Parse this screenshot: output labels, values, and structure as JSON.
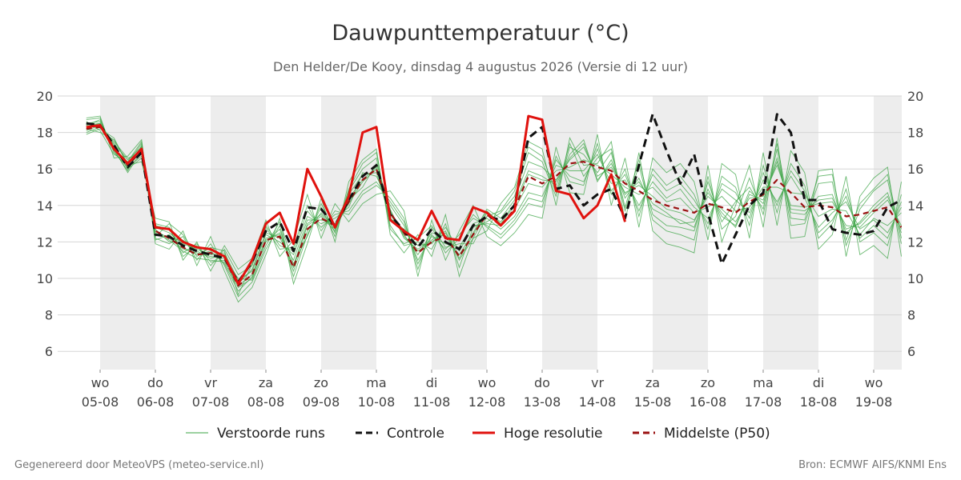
{
  "title": "Dauwpunttemperatuur (°C)",
  "subtitle": "Den Helder/De Kooy, dinsdag  4 augustus 2026 (Versie di 12 uur)",
  "footer_left": "Gegenereerd door MeteoVPS (meteo-service.nl)",
  "footer_right": "Bron: ECMWF AIFS/KNMI Ens",
  "chart_data": {
    "type": "line",
    "title": "Dauwpunttemperatuur (°C)",
    "ylim": [
      5,
      20
    ],
    "yticks": [
      6,
      8,
      10,
      12,
      14,
      16,
      18,
      20
    ],
    "x_unit": "days since 05-08 00:00 (interval of 6 hours)",
    "xlim": [
      -0.25,
      14.5
    ],
    "grid": true,
    "legend_position": "bottom",
    "xticks": [
      {
        "day": "wo",
        "date": "05-08"
      },
      {
        "day": "do",
        "date": "06-08"
      },
      {
        "day": "vr",
        "date": "07-08"
      },
      {
        "day": "za",
        "date": "08-08"
      },
      {
        "day": "zo",
        "date": "09-08"
      },
      {
        "day": "ma",
        "date": "10-08"
      },
      {
        "day": "di",
        "date": "11-08"
      },
      {
        "day": "wo",
        "date": "12-08"
      },
      {
        "day": "do",
        "date": "13-08"
      },
      {
        "day": "vr",
        "date": "14-08"
      },
      {
        "day": "za",
        "date": "15-08"
      },
      {
        "day": "zo",
        "date": "16-08"
      },
      {
        "day": "ma",
        "date": "17-08"
      },
      {
        "day": "di",
        "date": "18-08"
      },
      {
        "day": "wo",
        "date": "19-08"
      }
    ],
    "legend": [
      {
        "name": "Verstoorde runs",
        "color": "#3aa343",
        "style": "solid-thin"
      },
      {
        "name": "Controle",
        "color": "#111111",
        "style": "dashed"
      },
      {
        "name": "Hoge resolutie",
        "color": "#e0120e",
        "style": "solid-thick"
      },
      {
        "name": "Middelste (P50)",
        "color": "#9a1111",
        "style": "dashed"
      }
    ],
    "series": [
      {
        "name": "Hoge resolutie",
        "color": "#e0120e",
        "x": [
          -0.25,
          0,
          0.25,
          0.5,
          0.75,
          1,
          1.25,
          1.5,
          1.75,
          2,
          2.25,
          2.5,
          2.75,
          3,
          3.25,
          3.5,
          3.75,
          4,
          4.25,
          4.5,
          4.75,
          5,
          5.25,
          5.5,
          5.75,
          6,
          6.25,
          6.5,
          6.75,
          7,
          7.25,
          7.5,
          7.75,
          8,
          8.25,
          8.5,
          8.75,
          9,
          9.25,
          9.5
        ],
        "y": [
          18.3,
          18.4,
          17.1,
          16.3,
          17.1,
          12.8,
          12.7,
          12.0,
          11.7,
          11.6,
          11.2,
          9.7,
          11.0,
          13.0,
          13.6,
          11.9,
          16.0,
          14.5,
          12.8,
          14.5,
          18.0,
          18.3,
          13.2,
          12.6,
          12.1,
          13.7,
          12.2,
          12.1,
          13.9,
          13.6,
          12.9,
          13.7,
          18.9,
          18.7,
          14.8,
          14.6,
          13.3,
          14.0,
          15.7,
          13.1
        ]
      },
      {
        "name": "Controle",
        "color": "#111111",
        "x": [
          -0.25,
          0,
          0.25,
          0.5,
          0.75,
          1,
          1.25,
          1.5,
          1.75,
          2,
          2.25,
          2.5,
          2.75,
          3,
          3.25,
          3.5,
          3.75,
          4,
          4.25,
          4.5,
          4.75,
          5,
          5.25,
          5.5,
          5.75,
          6,
          6.25,
          6.5,
          6.75,
          7,
          7.25,
          7.5,
          7.75,
          8,
          8.25,
          8.5,
          8.75,
          9,
          9.25,
          9.5,
          9.75,
          10,
          10.25,
          10.5,
          10.75,
          11,
          11.25,
          11.5,
          11.75,
          12,
          12.25,
          12.5,
          12.75,
          13,
          13.25,
          13.5,
          13.75,
          14,
          14.25,
          14.5
        ],
        "y": [
          18.5,
          18.4,
          17.3,
          16.1,
          16.9,
          12.4,
          12.3,
          11.8,
          11.5,
          11.3,
          11.1,
          9.8,
          10.9,
          12.6,
          13.1,
          11.5,
          13.9,
          13.8,
          12.9,
          14.3,
          15.6,
          16.2,
          13.5,
          12.6,
          11.7,
          12.7,
          12.0,
          11.6,
          12.9,
          13.4,
          13.2,
          14.0,
          17.7,
          18.3,
          14.9,
          15.1,
          14.0,
          14.6,
          14.9,
          13.3,
          16.2,
          19.0,
          17.0,
          15.2,
          16.8,
          13.6,
          10.8,
          12.4,
          14.0,
          14.7,
          19.0,
          18.0,
          14.3,
          14.3,
          12.7,
          12.5,
          12.4,
          12.6,
          13.9,
          14.3
        ]
      },
      {
        "name": "Middelste (P50)",
        "color": "#9a1111",
        "x": [
          -0.25,
          0,
          0.25,
          0.5,
          0.75,
          1,
          1.25,
          1.5,
          1.75,
          2,
          2.25,
          2.5,
          2.75,
          3,
          3.25,
          3.5,
          3.75,
          4,
          4.25,
          4.5,
          4.75,
          5,
          5.25,
          5.5,
          5.75,
          6,
          6.25,
          6.5,
          6.75,
          7,
          7.25,
          7.5,
          7.75,
          8,
          8.25,
          8.5,
          8.75,
          9,
          9.25,
          9.5,
          9.75,
          10,
          10.25,
          10.5,
          10.75,
          11,
          11.25,
          11.5,
          11.75,
          12,
          12.25,
          12.5,
          12.75,
          13,
          13.25,
          13.5,
          13.75,
          14,
          14.25,
          14.5
        ],
        "y": [
          18.2,
          18.3,
          17.2,
          16.2,
          17.0,
          12.6,
          12.2,
          11.7,
          11.3,
          11.4,
          11.1,
          9.6,
          10.2,
          12.1,
          12.3,
          10.6,
          12.7,
          13.3,
          12.9,
          14.2,
          15.4,
          16.0,
          13.6,
          12.5,
          11.4,
          12.0,
          12.3,
          11.2,
          12.4,
          13.5,
          12.9,
          13.8,
          15.6,
          15.2,
          15.6,
          16.3,
          16.4,
          16.1,
          15.9,
          15.2,
          14.8,
          14.3,
          14.0,
          13.8,
          13.6,
          14.1,
          13.9,
          13.6,
          14.2,
          14.6,
          15.4,
          14.7,
          13.9,
          14.0,
          13.9,
          13.4,
          13.5,
          13.7,
          13.9,
          12.8
        ]
      }
    ],
    "perturbed_runs": {
      "name": "Verstoorde runs",
      "color": "#3aa343",
      "count": 50,
      "x_start": -0.25,
      "x_step": 0.25,
      "runs": [
        [
          18.4,
          18.7,
          17.0,
          15.9,
          17.3,
          12.5,
          12.1,
          11.5,
          11.1,
          11.0,
          10.9,
          9.5,
          10.0,
          12.1,
          12.5,
          10.6,
          12.9,
          13.4,
          12.6,
          14.3,
          15.0,
          16.3,
          13.8,
          12.2,
          11.6,
          12.1,
          12.6,
          11.0,
          12.2,
          13.6,
          13.1,
          14.1,
          15.9,
          15.6,
          15.1,
          16.8,
          17.6,
          15.3,
          16.5,
          14.4,
          15.5,
          13.8,
          13.4,
          13.2,
          12.8,
          14.9,
          13.4,
          12.9,
          14.8,
          14.1,
          16.6,
          13.6,
          13.5,
          14.5,
          14.6,
          12.5,
          13.1,
          14.0,
          14.7,
          12.5
        ],
        [
          18.0,
          18.3,
          17.5,
          16.6,
          16.8,
          12.8,
          12.5,
          11.9,
          11.6,
          11.3,
          11.4,
          9.9,
          10.4,
          12.4,
          12.0,
          11.3,
          13.4,
          13.0,
          13.3,
          13.9,
          15.8,
          15.6,
          14.0,
          12.9,
          11.0,
          12.3,
          11.9,
          11.7,
          13.0,
          13.3,
          12.7,
          13.4,
          14.7,
          14.5,
          16.2,
          15.9,
          15.9,
          16.8,
          15.2,
          15.4,
          14.0,
          15.3,
          14.4,
          14.9,
          13.9,
          13.3,
          14.9,
          14.3,
          13.6,
          15.4,
          14.2,
          15.6,
          14.4,
          12.8,
          13.6,
          14.2,
          12.7,
          13.2,
          12.5,
          13.9
        ],
        [
          18.6,
          18.1,
          16.8,
          16.4,
          17.5,
          12.2,
          11.9,
          12.3,
          11.0,
          11.9,
          10.7,
          9.0,
          9.8,
          11.6,
          12.9,
          10.1,
          12.4,
          13.9,
          12.3,
          14.8,
          16.0,
          16.6,
          12.9,
          11.8,
          12.0,
          11.6,
          13.0,
          10.6,
          12.8,
          13.1,
          13.6,
          14.5,
          16.9,
          16.4,
          14.5,
          17.2,
          16.8,
          15.8,
          16.9,
          13.7,
          16.2,
          13.2,
          12.6,
          12.4,
          12.1,
          15.6,
          12.7,
          13.4,
          15.5,
          13.5,
          17.1,
          12.9,
          13.0,
          15.2,
          15.3,
          11.8,
          13.8,
          14.8,
          15.4,
          11.9
        ],
        [
          18.3,
          18.5,
          17.3,
          16.0,
          16.6,
          13.0,
          12.8,
          11.2,
          11.8,
          10.7,
          11.6,
          10.2,
          10.7,
          12.8,
          11.6,
          11.7,
          14.0,
          12.6,
          13.7,
          13.5,
          14.6,
          15.1,
          14.4,
          13.3,
          10.5,
          12.8,
          11.4,
          12.2,
          13.5,
          12.8,
          12.2,
          13.0,
          14.1,
          13.9,
          16.7,
          15.3,
          15.1,
          17.4,
          14.6,
          16.0,
          13.4,
          16.0,
          15.1,
          15.6,
          14.6,
          12.7,
          15.6,
          15.0,
          12.9,
          16.2,
          13.6,
          16.3,
          15.1,
          12.2,
          13.0,
          14.9,
          12.0,
          12.5,
          11.8,
          14.6
        ],
        [
          18.8,
          18.9,
          16.6,
          16.7,
          17.6,
          11.9,
          11.6,
          12.6,
          10.7,
          12.3,
          10.4,
          8.7,
          9.5,
          11.3,
          13.3,
          9.7,
          11.9,
          14.4,
          12.0,
          15.3,
          16.5,
          17.1,
          12.4,
          11.4,
          12.4,
          11.2,
          13.5,
          10.1,
          12.2,
          12.6,
          14.1,
          15.0,
          17.5,
          17.1,
          14.0,
          17.7,
          16.2,
          16.3,
          17.5,
          13.1,
          16.9,
          12.6,
          11.9,
          11.7,
          11.4,
          16.2,
          12.0,
          14.0,
          16.2,
          12.8,
          17.7,
          12.2,
          12.3,
          15.9,
          16.0,
          11.2,
          14.5,
          15.5,
          16.1,
          11.2
        ],
        [
          17.9,
          18.2,
          17.7,
          16.2,
          16.4,
          13.3,
          13.1,
          11.0,
          12.0,
          10.4,
          11.8,
          10.5,
          11.1,
          13.2,
          11.2,
          12.1,
          14.6,
          12.2,
          14.1,
          13.1,
          14.1,
          14.6,
          14.8,
          13.7,
          10.1,
          13.2,
          11.0,
          12.6,
          14.0,
          12.3,
          11.8,
          12.5,
          13.5,
          13.3,
          17.2,
          14.7,
          14.6,
          17.9,
          14.0,
          16.6,
          12.8,
          16.6,
          15.8,
          16.3,
          15.3,
          12.1,
          16.3,
          15.7,
          12.2,
          16.9,
          12.9,
          17.0,
          15.8,
          11.6,
          12.4,
          15.6,
          11.3,
          11.8,
          11.1,
          15.3
        ],
        [
          18.5,
          18.6,
          17.1,
          15.8,
          17.0,
          12.1,
          12.4,
          11.7,
          11.3,
          11.5,
          10.8,
          9.3,
          10.1,
          12.0,
          12.7,
          10.4,
          12.6,
          13.6,
          12.8,
          14.1,
          15.3,
          16.0,
          13.5,
          12.4,
          11.3,
          12.5,
          12.3,
          11.3,
          12.5,
          13.8,
          13.3,
          14.3,
          16.4,
          16.1,
          15.4,
          16.5,
          17.2,
          15.6,
          16.1,
          14.7,
          15.1,
          14.5,
          13.8,
          13.6,
          13.2,
          14.5,
          13.8,
          13.1,
          14.4,
          14.5,
          16.2,
          14.0,
          13.9,
          14.1,
          14.2,
          12.9,
          12.8,
          13.6,
          14.3,
          12.9
        ],
        [
          18.1,
          18.4,
          17.4,
          16.5,
          17.2,
          12.7,
          12.0,
          12.1,
          11.5,
          11.1,
          11.3,
          9.7,
          10.5,
          12.5,
          12.2,
          11.0,
          13.2,
          13.2,
          13.0,
          14.6,
          15.7,
          15.8,
          13.3,
          12.7,
          11.8,
          11.9,
          12.8,
          11.5,
          12.9,
          13.0,
          12.9,
          13.8,
          15.2,
          15.0,
          15.9,
          16.1,
          16.5,
          16.2,
          15.7,
          15.0,
          14.6,
          15.0,
          14.2,
          14.4,
          13.6,
          13.9,
          14.5,
          13.7,
          13.9,
          15.0,
          15.0,
          14.7,
          14.6,
          13.4,
          13.8,
          13.7,
          12.4,
          13.3,
          12.9,
          13.6
        ],
        [
          18.7,
          18.8,
          16.9,
          16.1,
          16.7,
          12.9,
          12.7,
          11.4,
          11.9,
          10.9,
          11.0,
          10.0,
          9.9,
          11.8,
          13.1,
          10.8,
          12.3,
          14.1,
          12.5,
          14.9,
          16.3,
          16.9,
          12.7,
          11.9,
          12.2,
          12.9,
          11.7,
          11.9,
          11.9,
          13.4,
          13.7,
          14.8,
          17.2,
          16.7,
          14.7,
          17.4,
          15.6,
          16.6,
          17.1,
          13.9,
          16.5,
          13.5,
          12.9,
          12.8,
          12.6,
          15.3,
          13.1,
          14.2,
          15.0,
          13.8,
          17.4,
          13.3,
          13.2,
          15.6,
          15.7,
          12.1,
          14.1,
          14.9,
          15.7,
          12.2
        ],
        [
          18.2,
          18.0,
          17.6,
          16.3,
          17.4,
          12.3,
          13.0,
          12.4,
          11.2,
          11.7,
          11.5,
          9.1,
          10.8,
          12.9,
          11.8,
          11.5,
          13.7,
          12.8,
          13.5,
          13.7,
          14.8,
          15.3,
          14.2,
          13.1,
          10.8,
          12.4,
          11.6,
          12.4,
          13.3,
          12.9,
          12.4,
          13.2,
          14.4,
          14.2,
          16.5,
          15.6,
          15.3,
          17.1,
          14.8,
          15.7,
          13.7,
          15.7,
          14.8,
          15.2,
          14.3,
          13.0,
          15.2,
          14.7,
          13.3,
          15.8,
          14.0,
          15.9,
          14.8,
          12.5,
          13.2,
          14.5,
          12.2,
          12.9,
          12.2,
          14.2
        ],
        [
          18.4,
          18.5,
          17.2,
          16.0,
          17.1,
          12.6,
          12.2,
          11.6,
          11.4,
          11.2,
          11.1,
          9.6,
          10.2,
          12.2,
          12.4,
          10.7,
          13.0,
          13.5,
          12.7,
          14.4,
          15.4,
          16.1,
          13.7,
          12.3,
          11.5,
          12.0,
          12.5,
          11.1,
          12.4,
          13.7,
          13.0,
          14.0,
          15.7,
          15.4,
          15.3,
          16.6,
          17.4,
          15.4,
          16.3,
          14.6,
          15.3,
          14.1,
          13.6,
          13.0,
          13.1,
          14.7,
          13.6,
          12.8,
          14.6,
          14.3,
          16.4,
          13.8,
          13.7,
          14.3,
          14.4,
          12.7,
          13.0,
          13.8,
          14.5,
          12.7
        ]
      ]
    }
  }
}
